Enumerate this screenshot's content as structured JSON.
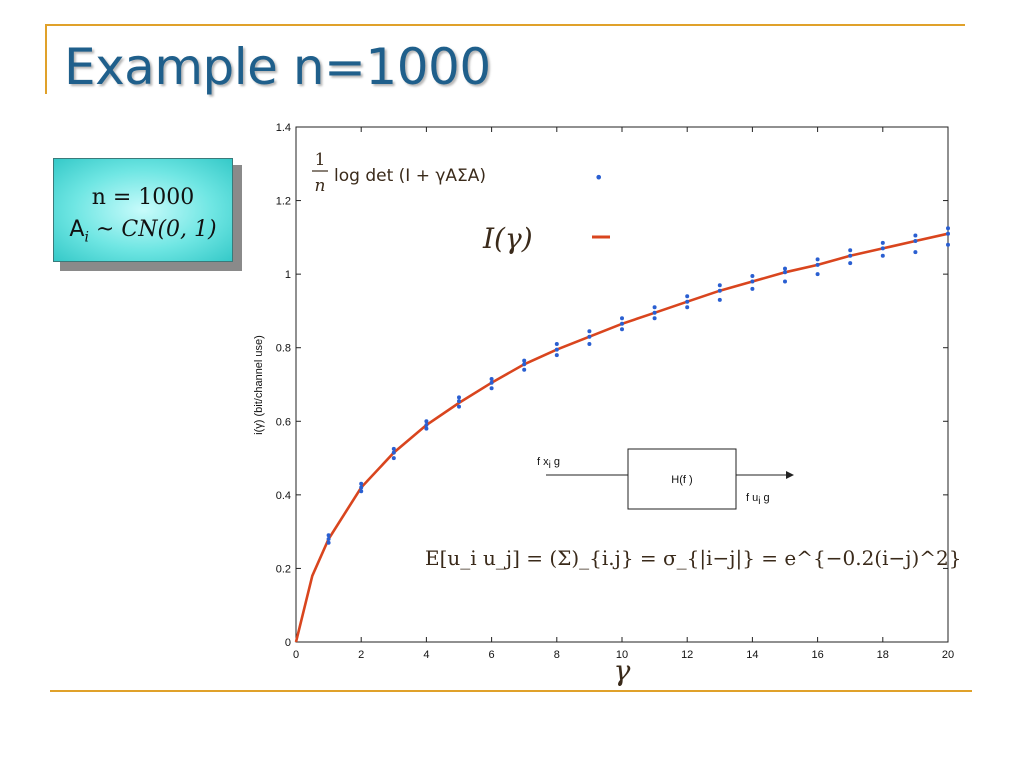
{
  "slide": {
    "title": "Example n=1000"
  },
  "infobox": {
    "line1": "n = 1000",
    "line2_prefix": "A",
    "line2_sub": "i",
    "line2_rest": " ~ CN(0, 1)"
  },
  "colors": {
    "title": "#1f5f8b",
    "rule": "#e0a12a",
    "curve": "#d9451e",
    "points": "#2a5fd1",
    "infobox": "#6fe6e3"
  },
  "chart_data": {
    "type": "line",
    "ylabel": "i(γ) (bit/channel use)",
    "xlabel": "γ",
    "xlim": [
      0,
      20
    ],
    "ylim": [
      0,
      1.4
    ],
    "xticks": [
      0,
      2,
      4,
      6,
      8,
      10,
      12,
      14,
      16,
      18,
      20
    ],
    "yticks": [
      0,
      0.2,
      0.4,
      0.6,
      0.8,
      1,
      1.2,
      1.4
    ],
    "ytick_labels": [
      "0",
      "0.2",
      "0.4",
      "0.6",
      "0.8",
      "1",
      "1.2",
      "1.4"
    ],
    "legend": {
      "entry1": "1/n log det (I + γAΣA)",
      "entry1_frac_num": "1",
      "entry1_frac_den": "n",
      "entry1_text": "log det (I + γAΣA)",
      "entry2": "I(γ)",
      "marker1": "•",
      "marker2": "–"
    },
    "series": [
      {
        "name": "I(γ)",
        "x": [
          0,
          0.5,
          1,
          2,
          3,
          4,
          5,
          6,
          7,
          8,
          9,
          10,
          11,
          12,
          13,
          14,
          15,
          16,
          17,
          18,
          19,
          20
        ],
        "values": [
          0,
          0.18,
          0.28,
          0.42,
          0.515,
          0.59,
          0.65,
          0.705,
          0.755,
          0.795,
          0.83,
          0.865,
          0.895,
          0.925,
          0.955,
          0.98,
          1.005,
          1.025,
          1.05,
          1.07,
          1.09,
          1.11
        ]
      },
      {
        "name": "1/n log det (I + γAΣA)",
        "x": [
          1,
          1,
          1,
          2,
          2,
          2,
          3,
          3,
          3,
          4,
          4,
          4,
          5,
          5,
          5,
          6,
          6,
          6,
          7,
          7,
          7,
          8,
          8,
          8,
          9,
          9,
          9,
          10,
          10,
          10,
          11,
          11,
          11,
          12,
          12,
          12,
          13,
          13,
          13,
          14,
          14,
          14,
          15,
          15,
          15,
          16,
          16,
          16,
          17,
          17,
          17,
          18,
          18,
          18,
          19,
          19,
          19,
          20,
          20,
          20
        ],
        "values": [
          0.27,
          0.28,
          0.29,
          0.41,
          0.42,
          0.43,
          0.5,
          0.515,
          0.525,
          0.58,
          0.59,
          0.6,
          0.64,
          0.655,
          0.665,
          0.69,
          0.705,
          0.715,
          0.74,
          0.755,
          0.765,
          0.78,
          0.795,
          0.81,
          0.81,
          0.83,
          0.845,
          0.85,
          0.865,
          0.88,
          0.88,
          0.895,
          0.91,
          0.91,
          0.925,
          0.94,
          0.93,
          0.955,
          0.97,
          0.96,
          0.98,
          0.995,
          0.98,
          1.005,
          1.015,
          1.0,
          1.025,
          1.04,
          1.03,
          1.05,
          1.065,
          1.05,
          1.07,
          1.085,
          1.06,
          1.09,
          1.105,
          1.08,
          1.11,
          1.125
        ]
      }
    ],
    "annotations": {
      "block_input": "{xi}",
      "block_input_parts": [
        "f x",
        "i",
        " g"
      ],
      "block_label": "H(f )",
      "block_output_parts": [
        "f u",
        "i",
        " g"
      ],
      "covariance_eq": "E[u_i u_j] = (Σ)_{i.j} = σ_{|i−j|} = e^{−0.2(i−j)^2}"
    }
  }
}
